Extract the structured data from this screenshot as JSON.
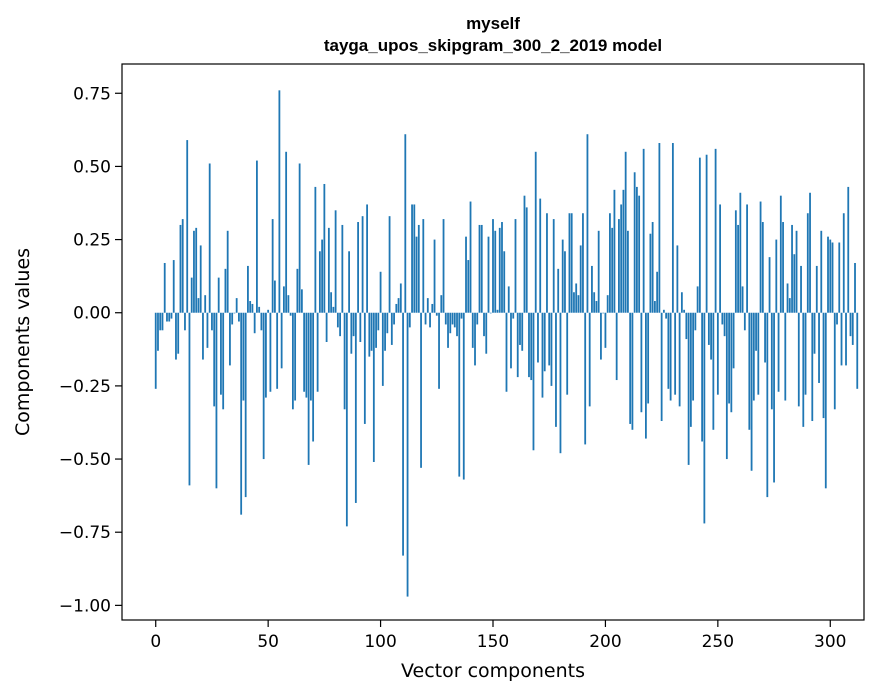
{
  "chart_data": {
    "type": "bar",
    "title_line1": "myself",
    "title_line2": "tayga_upos_skipgram_300_2_2019 model",
    "xlabel": "Vector components",
    "ylabel": "Components values",
    "xlim": [
      -15,
      315
    ],
    "ylim": [
      -1.05,
      0.85
    ],
    "xticks": [
      0,
      50,
      100,
      150,
      200,
      250,
      300
    ],
    "yticks": [
      0.75,
      0.5,
      0.25,
      0.0,
      -0.25,
      -0.5,
      -0.75,
      -1.0
    ],
    "ytick_labels": [
      "0.75",
      "0.50",
      "0.25",
      "0.00",
      "−0.25",
      "−0.50",
      "−0.75",
      "−1.00"
    ],
    "bar_color": "#1f77b4",
    "grid": false,
    "values": [
      -0.26,
      -0.13,
      -0.06,
      -0.06,
      0.17,
      -0.03,
      -0.03,
      -0.02,
      0.18,
      -0.16,
      -0.14,
      0.3,
      0.32,
      -0.06,
      0.59,
      -0.59,
      0.12,
      0.28,
      0.29,
      0.05,
      0.23,
      -0.16,
      0.06,
      -0.12,
      0.51,
      -0.06,
      -0.32,
      -0.6,
      0.12,
      -0.28,
      -0.33,
      0.15,
      0.28,
      -0.18,
      -0.04,
      0.0,
      0.05,
      -0.03,
      -0.69,
      -0.3,
      -0.63,
      0.16,
      0.04,
      0.03,
      -0.07,
      0.52,
      0.02,
      -0.06,
      -0.5,
      -0.29,
      0.01,
      -0.27,
      0.32,
      0.11,
      -0.26,
      0.76,
      -0.19,
      0.09,
      0.55,
      0.06,
      -0.01,
      -0.33,
      -0.3,
      0.15,
      0.51,
      0.08,
      -0.27,
      -0.29,
      -0.52,
      -0.3,
      -0.44,
      0.43,
      -0.27,
      0.21,
      0.25,
      0.44,
      -0.1,
      0.29,
      0.07,
      0.02,
      0.35,
      -0.05,
      -0.08,
      0.3,
      -0.33,
      -0.73,
      0.21,
      -0.14,
      -0.08,
      -0.65,
      0.31,
      -0.1,
      0.33,
      -0.38,
      0.37,
      -0.15,
      -0.13,
      -0.51,
      -0.12,
      -0.06,
      0.14,
      -0.25,
      -0.13,
      -0.07,
      0.33,
      -0.11,
      -0.04,
      0.03,
      0.05,
      0.1,
      -0.83,
      0.61,
      -0.97,
      -0.05,
      0.37,
      0.37,
      0.26,
      0.3,
      -0.53,
      0.32,
      -0.04,
      0.05,
      -0.05,
      0.03,
      0.25,
      -0.01,
      -0.26,
      0.06,
      0.32,
      -0.04,
      -0.12,
      -0.07,
      -0.04,
      -0.05,
      -0.08,
      -0.56,
      -0.02,
      -0.57,
      0.26,
      0.18,
      0.38,
      -0.12,
      -0.18,
      -0.04,
      0.3,
      0.3,
      -0.08,
      -0.14,
      0.26,
      0.0,
      0.32,
      0.28,
      0.01,
      0.29,
      0.31,
      0.21,
      -0.27,
      0.09,
      -0.19,
      -0.02,
      0.32,
      -0.22,
      -0.11,
      -0.13,
      0.4,
      0.36,
      -0.22,
      -0.23,
      -0.47,
      0.55,
      -0.17,
      0.39,
      -0.29,
      -0.2,
      0.34,
      -0.18,
      -0.25,
      0.32,
      -0.39,
      0.15,
      -0.48,
      0.25,
      0.21,
      -0.28,
      0.34,
      0.34,
      0.07,
      0.1,
      0.06,
      0.23,
      0.34,
      -0.45,
      0.61,
      -0.32,
      0.16,
      0.07,
      0.04,
      0.28,
      -0.16,
      0.0,
      -0.12,
      0.06,
      0.34,
      0.29,
      0.42,
      -0.23,
      0.32,
      0.37,
      0.42,
      0.55,
      0.28,
      -0.38,
      -0.4,
      0.48,
      0.43,
      0.4,
      -0.34,
      0.56,
      -0.43,
      -0.31,
      0.27,
      0.31,
      0.04,
      0.14,
      0.58,
      -0.37,
      0.01,
      -0.02,
      -0.26,
      -0.3,
      0.58,
      -0.28,
      0.23,
      -0.32,
      0.07,
      0.01,
      -0.09,
      -0.52,
      -0.39,
      -0.3,
      -0.06,
      0.09,
      0.53,
      -0.44,
      -0.72,
      0.54,
      -0.11,
      -0.16,
      -0.4,
      0.56,
      -0.28,
      0.37,
      -0.04,
      -0.08,
      -0.5,
      -0.31,
      -0.34,
      -0.19,
      0.35,
      0.3,
      0.41,
      0.09,
      -0.06,
      0.37,
      -0.4,
      -0.54,
      -0.3,
      -0.13,
      -0.28,
      0.38,
      0.31,
      -0.17,
      -0.63,
      0.19,
      -0.33,
      -0.58,
      0.25,
      -0.27,
      0.4,
      0.31,
      -0.3,
      0.1,
      0.05,
      0.3,
      0.2,
      0.28,
      -0.32,
      0.16,
      -0.39,
      -0.28,
      0.34,
      0.41,
      -0.37,
      -0.14,
      0.16,
      -0.24,
      0.28,
      -0.36,
      -0.6,
      0.26,
      0.25,
      0.24,
      -0.33,
      -0.04,
      0.24,
      -0.18,
      0.34,
      -0.18,
      0.43,
      -0.08,
      -0.11,
      0.17,
      -0.26
    ]
  }
}
